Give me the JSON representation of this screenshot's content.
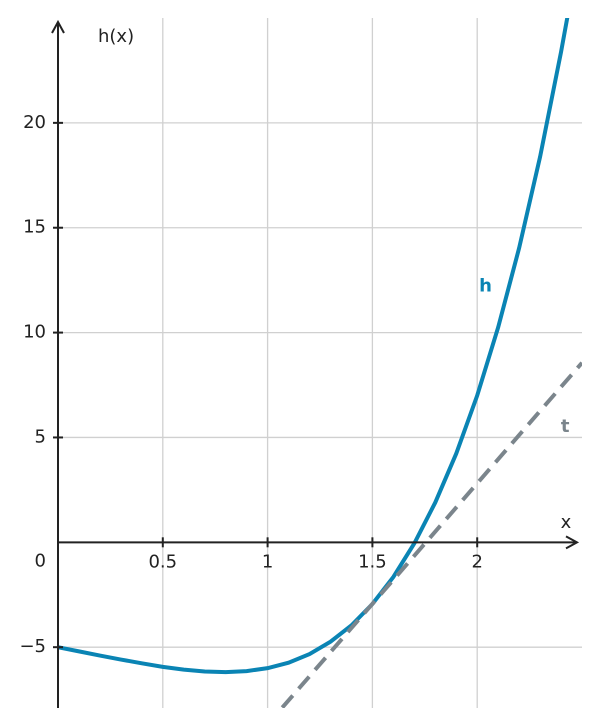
{
  "chart_data": {
    "type": "line",
    "xlabel": "x",
    "ylabel": "h(x)",
    "xlim": [
      0,
      2.5
    ],
    "ylim": [
      -7.9,
      25
    ],
    "xticks": [
      0.5,
      1,
      1.5,
      2
    ],
    "yticks": [
      {
        "value": -5,
        "label": "−5"
      },
      0,
      5,
      10,
      15,
      20
    ],
    "grid": true,
    "series": [
      {
        "name": "h",
        "color": "#0a84b4",
        "dash": false,
        "x": [
          0,
          0.1,
          0.2,
          0.3,
          0.4,
          0.5,
          0.6,
          0.7,
          0.8,
          0.9,
          1.0,
          1.1,
          1.2,
          1.3,
          1.4,
          1.5,
          1.6,
          1.7,
          1.8,
          1.9,
          2.0,
          2.1,
          2.2,
          2.3,
          2.4,
          2.44
        ],
        "values": [
          -5,
          -5.2,
          -5.4,
          -5.59,
          -5.77,
          -5.94,
          -6.07,
          -6.16,
          -6.19,
          -6.14,
          -6,
          -5.74,
          -5.33,
          -4.74,
          -3.96,
          -2.94,
          -1.65,
          -0.05,
          1.9,
          4.23,
          7,
          10.25,
          14.03,
          18.38,
          23.38,
          25.57
        ],
        "label_at": [
          2.04,
          12.2
        ]
      },
      {
        "name": "t",
        "color": "#7b858c",
        "dash": true,
        "x": [
          1.07,
          2.5
        ],
        "values": [
          -7.88,
          8.56
        ],
        "label_at": [
          2.42,
          5.5
        ]
      }
    ]
  }
}
